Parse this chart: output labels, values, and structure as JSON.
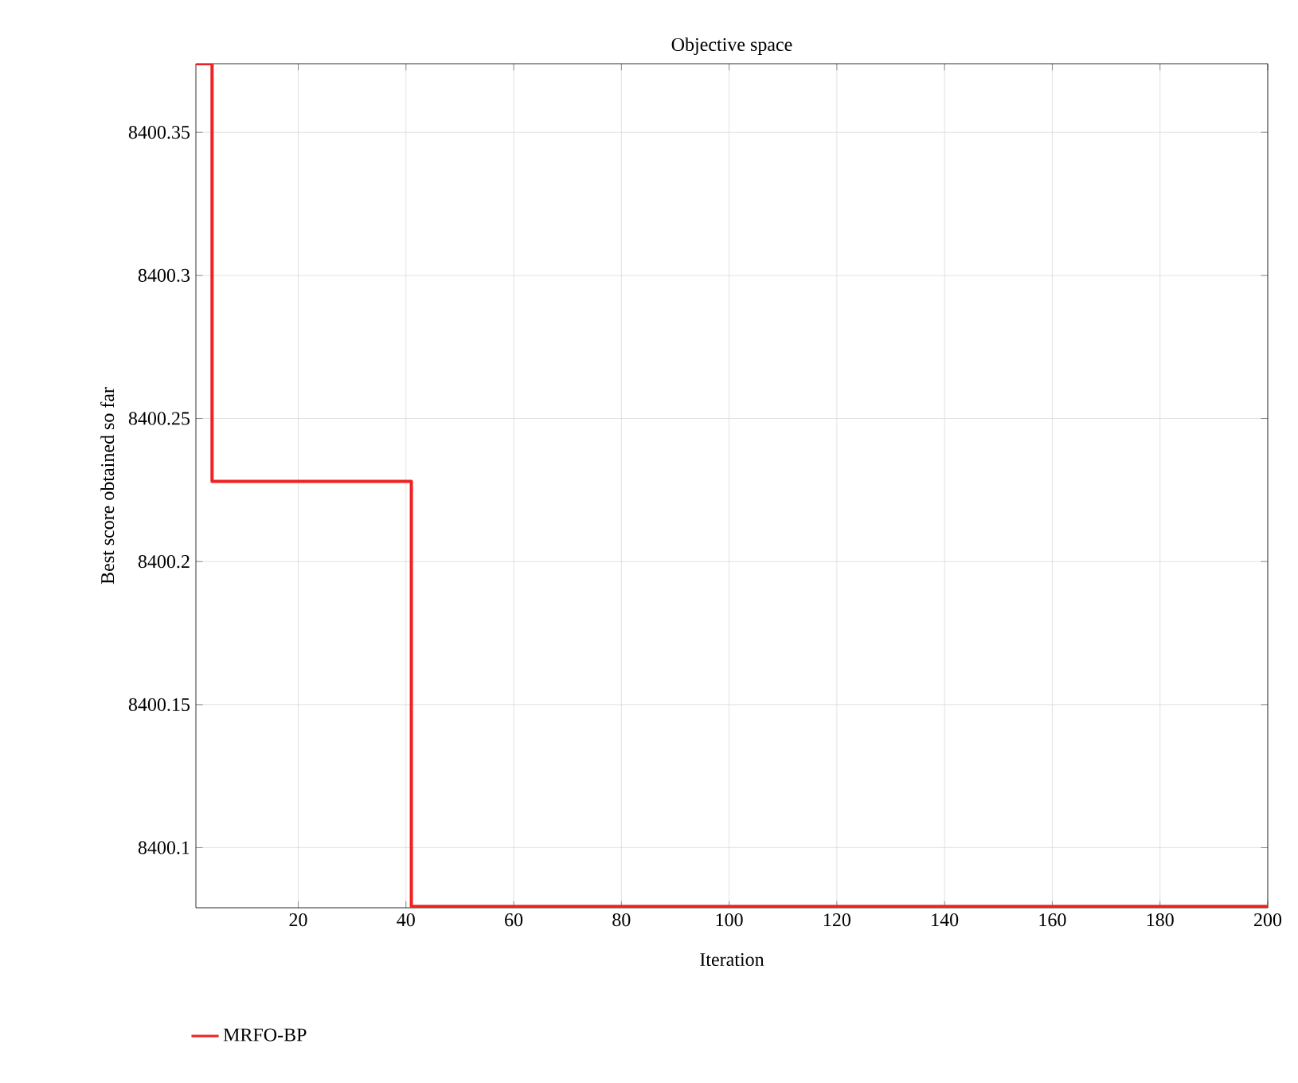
{
  "chart_data": {
    "type": "step",
    "title": "Objective space",
    "xlabel": "Iteration",
    "ylabel": "Best score obtained so far",
    "x": [
      1,
      4,
      41,
      200
    ],
    "series": [
      {
        "name": "MRFO-BP",
        "color": "#ee2222",
        "values": [
          8400.374,
          8400.228,
          8400.0795,
          8400.0795
        ]
      }
    ],
    "xlim": [
      1,
      200
    ],
    "xticks": [
      20,
      40,
      60,
      80,
      100,
      120,
      140,
      160,
      180,
      200
    ],
    "ylim": [
      8400.079,
      8400.374
    ],
    "yticks": [
      8400.1,
      8400.15,
      8400.2,
      8400.25,
      8400.3,
      8400.35
    ],
    "grid": true,
    "legend": "bottom left",
    "marker": "none",
    "line_style": "solid"
  }
}
